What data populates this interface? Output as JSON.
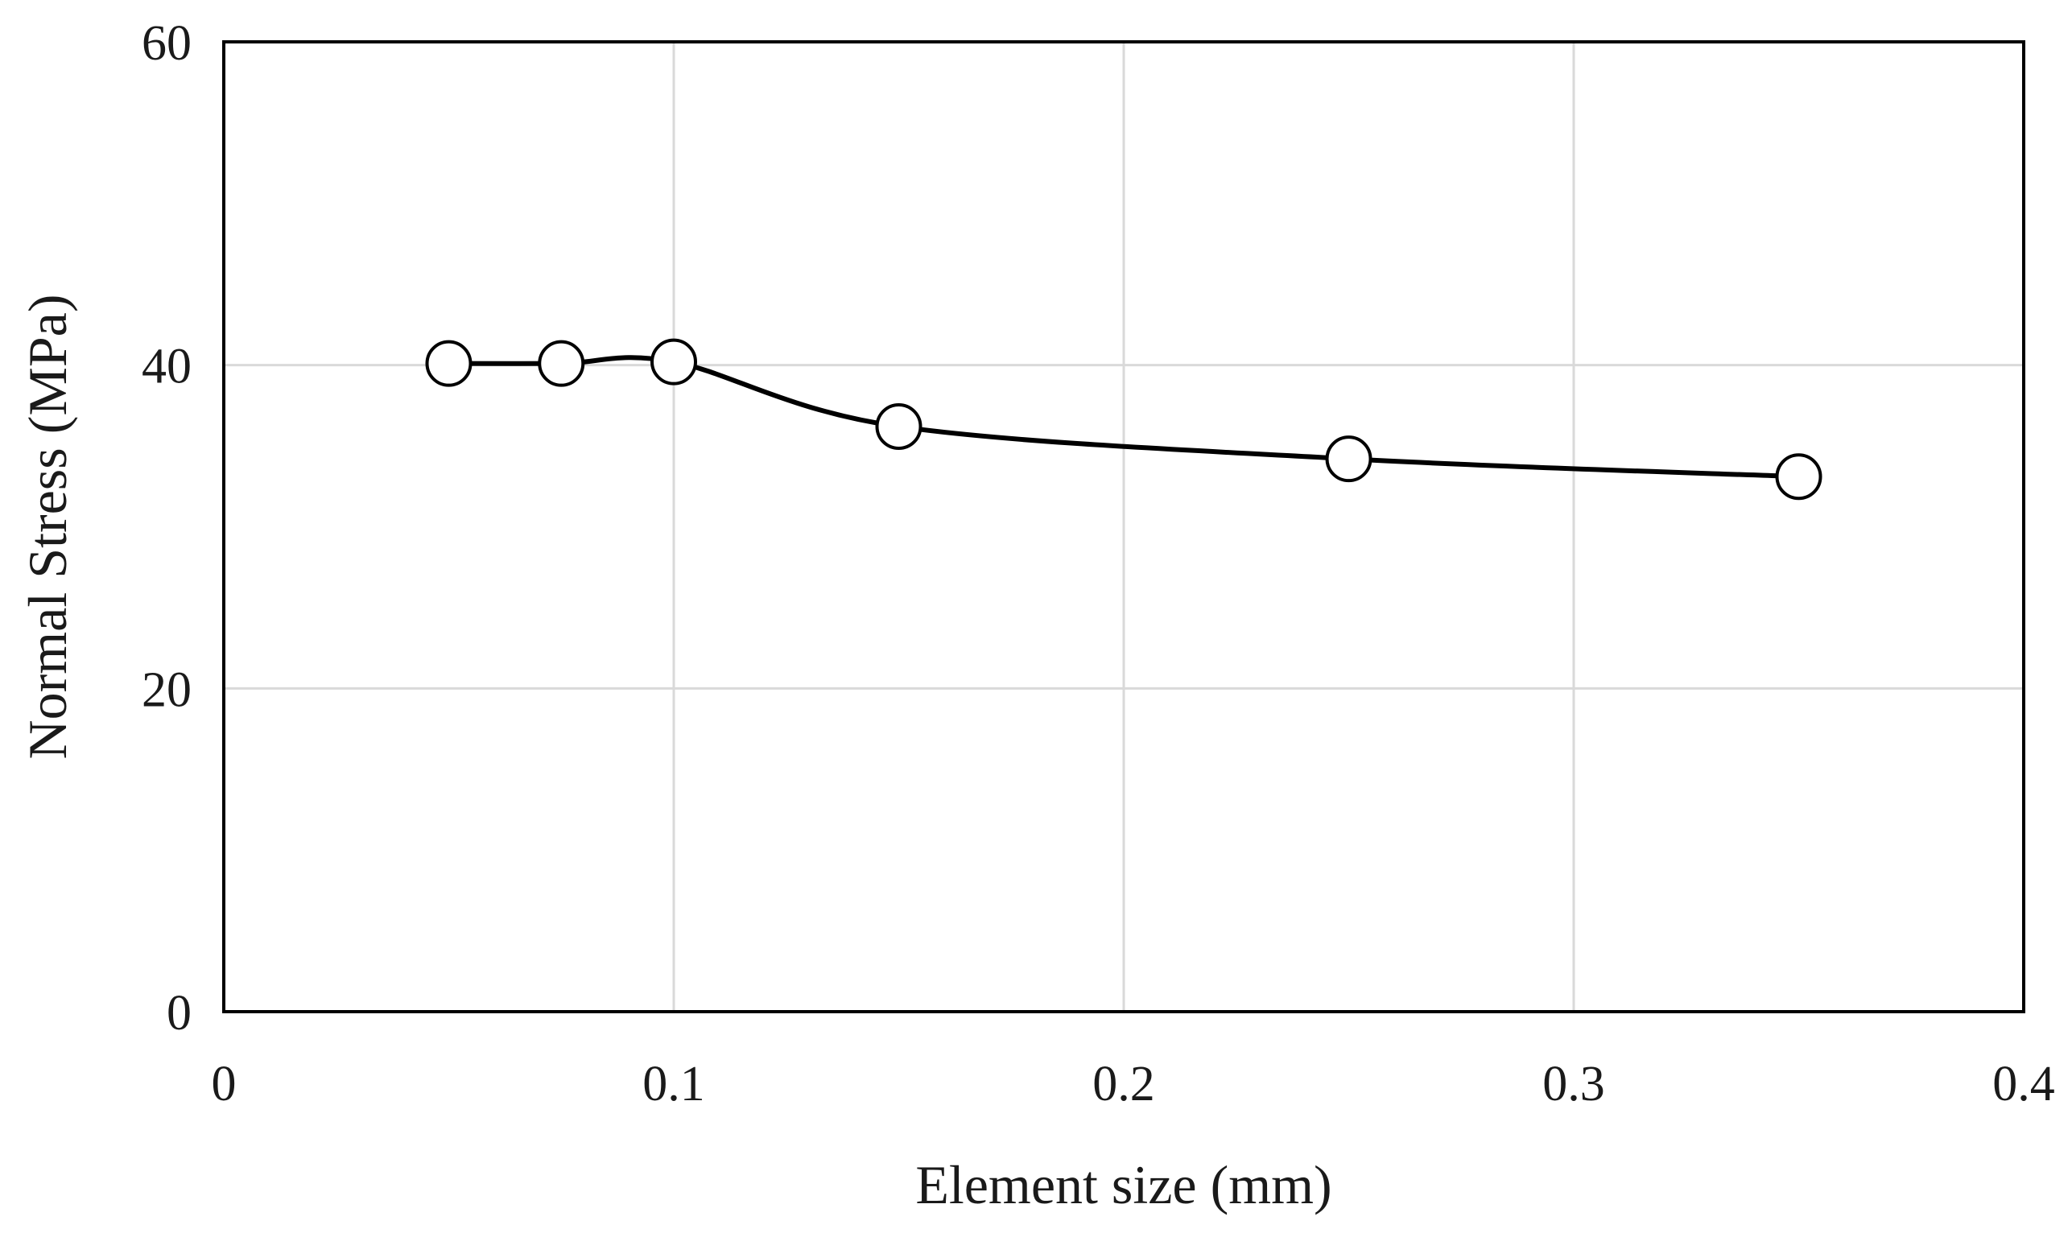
{
  "chart_data": {
    "type": "line",
    "title": "",
    "xlabel": "Element size (mm)",
    "ylabel": "Normal Stress (MPa)",
    "xlim": [
      0,
      0.4
    ],
    "ylim": [
      0,
      60
    ],
    "x_ticks": [
      0,
      0.1,
      0.2,
      0.3,
      0.4
    ],
    "x_tick_labels": [
      "0",
      "0.1",
      "0.2",
      "0.3",
      "0.4"
    ],
    "y_ticks": [
      0,
      20,
      40,
      60
    ],
    "y_tick_labels": [
      "0",
      "20",
      "40",
      "60"
    ],
    "grid": true,
    "legend": "none",
    "series": [
      {
        "name": "Normal Stress",
        "marker": "open-circle",
        "smooth": true,
        "color": "#000000",
        "x": [
          0.05,
          0.075,
          0.1,
          0.15,
          0.25,
          0.35
        ],
        "y": [
          40.1,
          40.1,
          40.2,
          36.2,
          34.2,
          33.1
        ]
      }
    ]
  },
  "style": {
    "grid_color": "#d9d9d9",
    "frame_color": "#000000",
    "background": "#ffffff"
  }
}
